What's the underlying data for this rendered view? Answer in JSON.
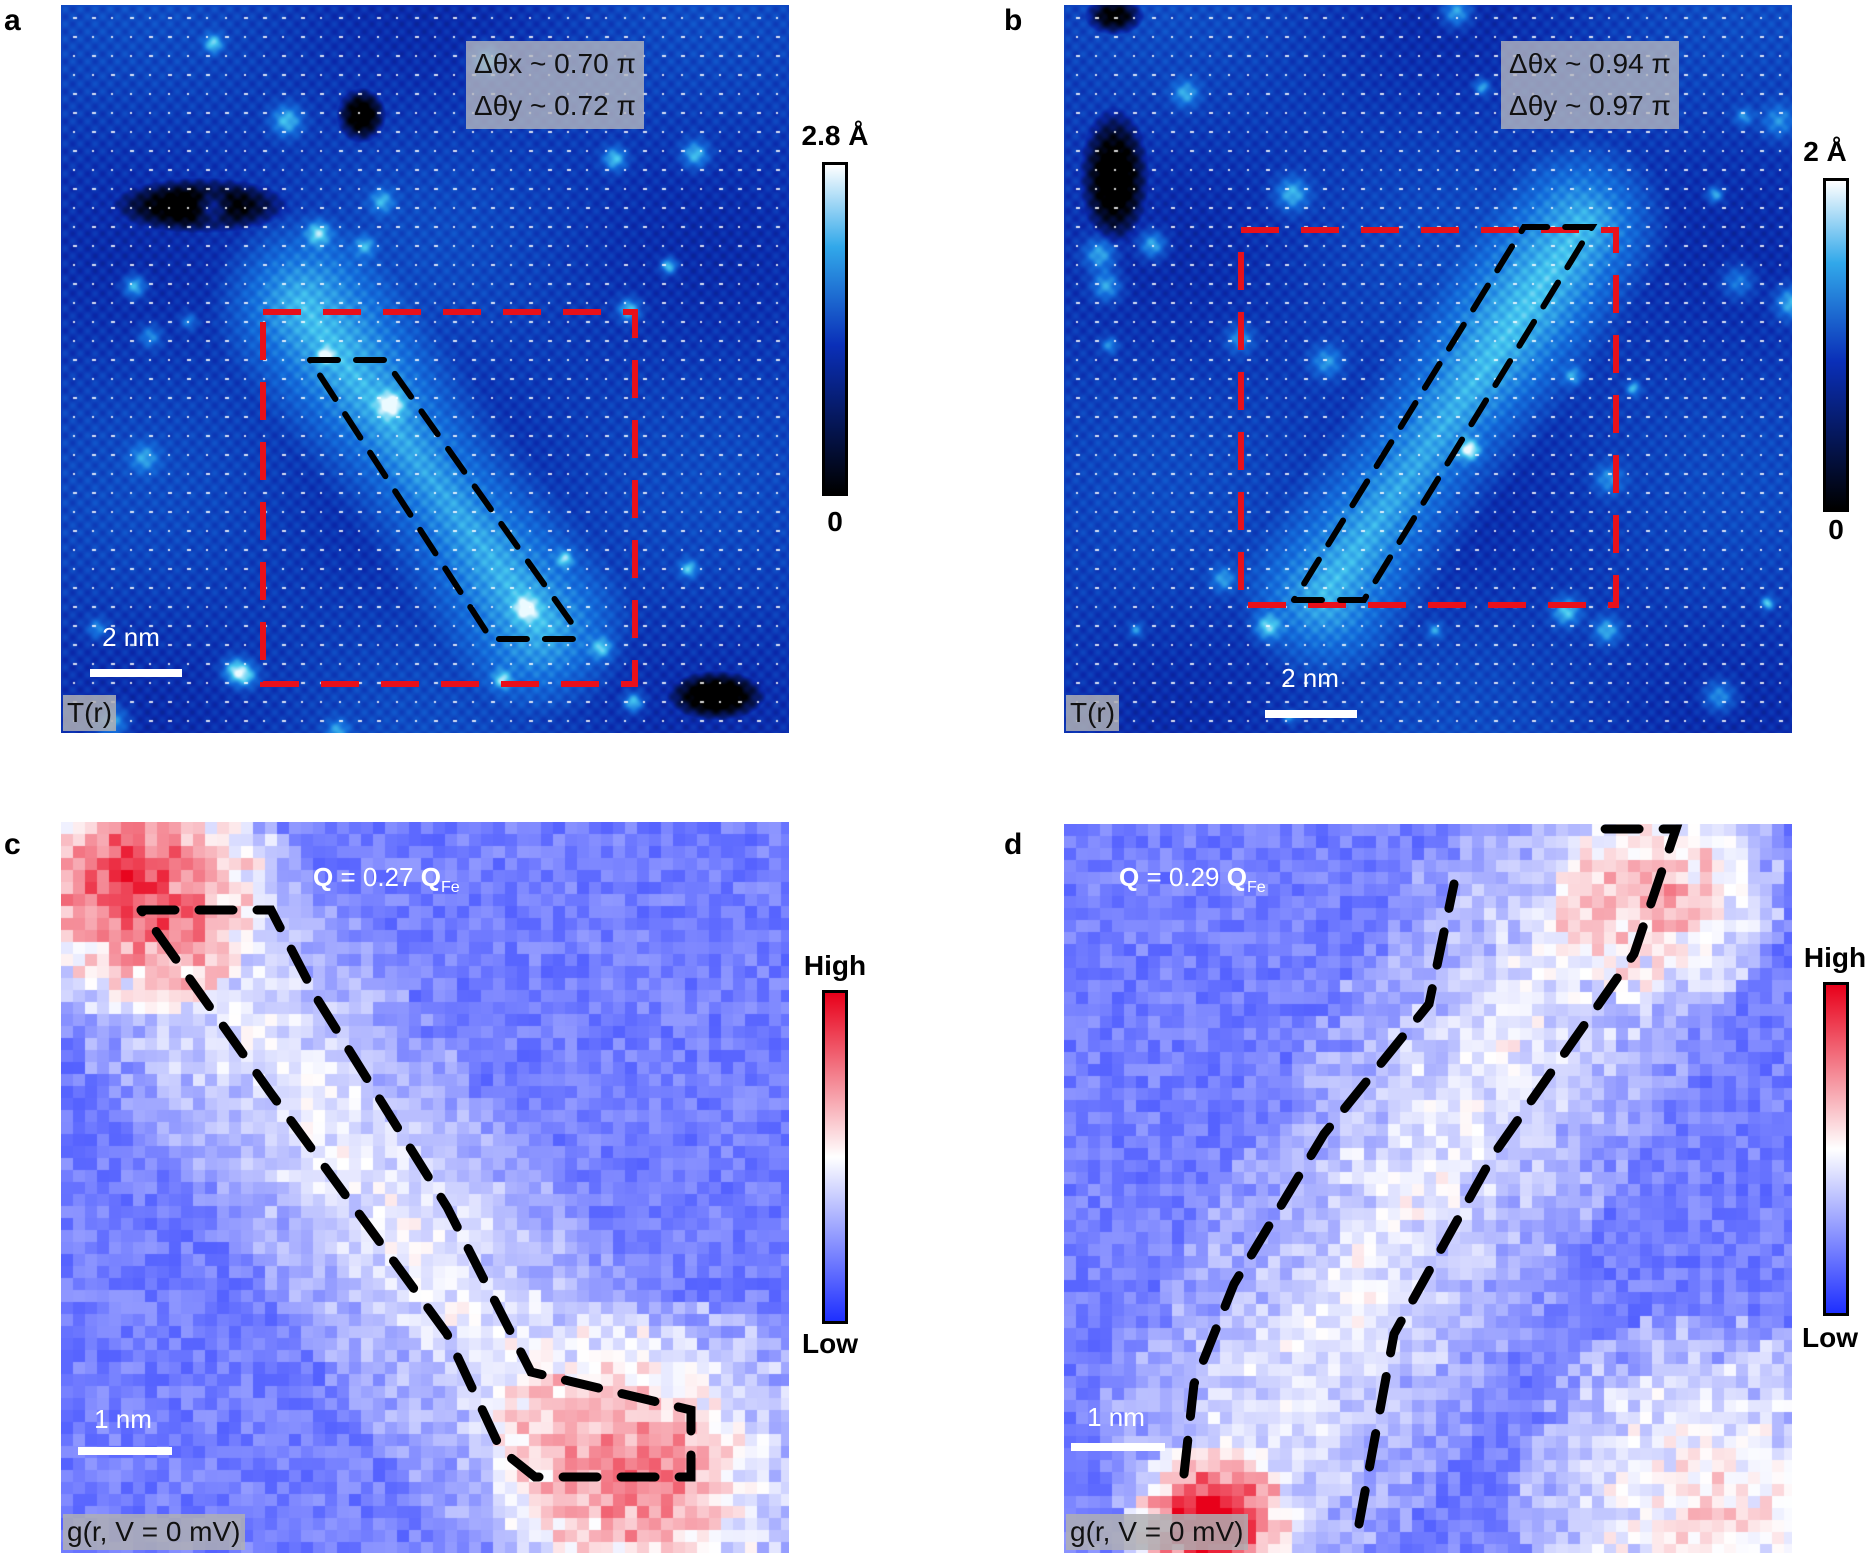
{
  "panels": {
    "a": {
      "letter": "a",
      "theta_x": "Δθx ~ 0.70 π",
      "theta_y": "Δθy ~ 0.72 π",
      "scalebar": "2 nm",
      "corner": "T(r)",
      "colorbar_max": "2.8 Å",
      "colorbar_min": "0"
    },
    "b": {
      "letter": "b",
      "theta_x": "Δθx ~ 0.94 π",
      "theta_y": "Δθy ~ 0.97 π",
      "scalebar": "2 nm",
      "corner": "T(r)",
      "colorbar_max": "2 Å",
      "colorbar_min": "0"
    },
    "c": {
      "letter": "c",
      "q_label": "Q = 0.27 QFe",
      "scalebar": "1 nm",
      "corner": "g(r, V = 0 mV)",
      "colorbar_high": "High",
      "colorbar_low": "Low"
    },
    "d": {
      "letter": "d",
      "q_label": "Q = 0.29 QFe",
      "scalebar": "1 nm",
      "corner": "g(r, V = 0 mV)",
      "colorbar_high": "High",
      "colorbar_low": "Low"
    }
  },
  "colors": {
    "topo_dark": "#000000",
    "topo_mid": "#0a2fb8",
    "topo_light": "#5fd0f5",
    "map_low": "#1e2fff",
    "map_mid": "#ffffff",
    "map_high": "#e8001a",
    "dashed_red": "#e8101a",
    "dashed_black": "#000000"
  }
}
